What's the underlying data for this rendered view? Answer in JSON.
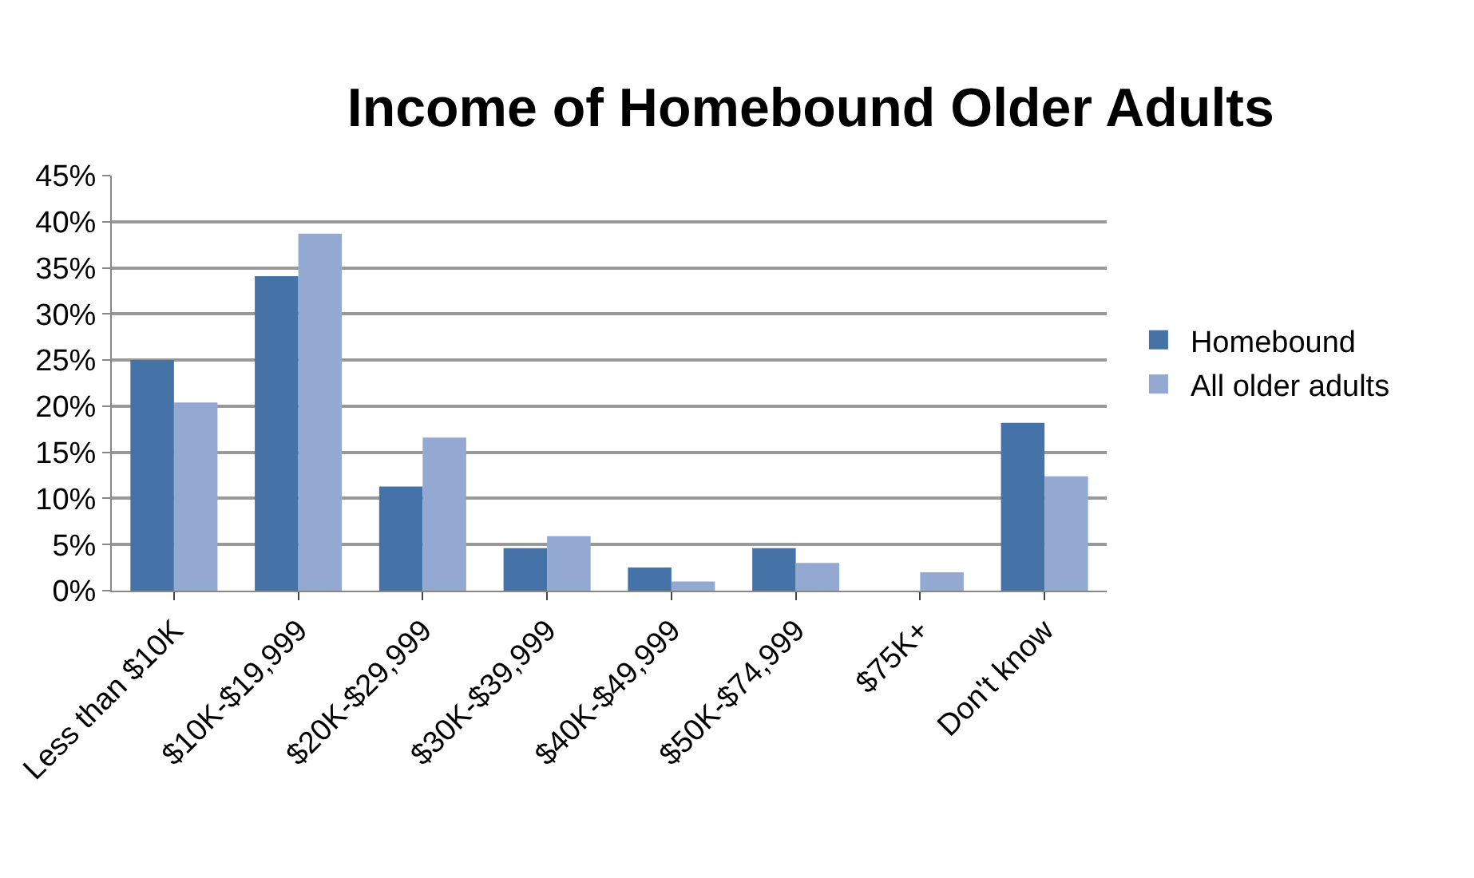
{
  "chart_data": {
    "type": "bar",
    "title": "Income of Homebound Older Adults",
    "categories": [
      "Less than $10K",
      "$10K-$19,999",
      "$20K-$29,999",
      "$30K-$39,999",
      "$40K-$49,999",
      "$50K-$74,999",
      "$75K+",
      "Don't know"
    ],
    "series": [
      {
        "name": "Homebound",
        "color": "#4673a7",
        "values": [
          25,
          34.1,
          11.3,
          4.6,
          2.5,
          4.6,
          0,
          18.2
        ]
      },
      {
        "name": "All older adults",
        "color": "#94a9d1",
        "values": [
          20.4,
          38.7,
          16.6,
          5.9,
          1.0,
          3.0,
          2.0,
          12.4
        ]
      }
    ],
    "ylim": [
      0,
      45
    ],
    "yticks": [
      {
        "value": 0,
        "label": "0%"
      },
      {
        "value": 5,
        "label": "5%"
      },
      {
        "value": 10,
        "label": "10%"
      },
      {
        "value": 15,
        "label": "15%"
      },
      {
        "value": 20,
        "label": "20%"
      },
      {
        "value": 25,
        "label": "25%"
      },
      {
        "value": 30,
        "label": "30%"
      },
      {
        "value": 35,
        "label": "35%"
      },
      {
        "value": 40,
        "label": "40%"
      },
      {
        "value": 45,
        "label": "45%"
      }
    ],
    "grid": "y",
    "legend": "right"
  }
}
